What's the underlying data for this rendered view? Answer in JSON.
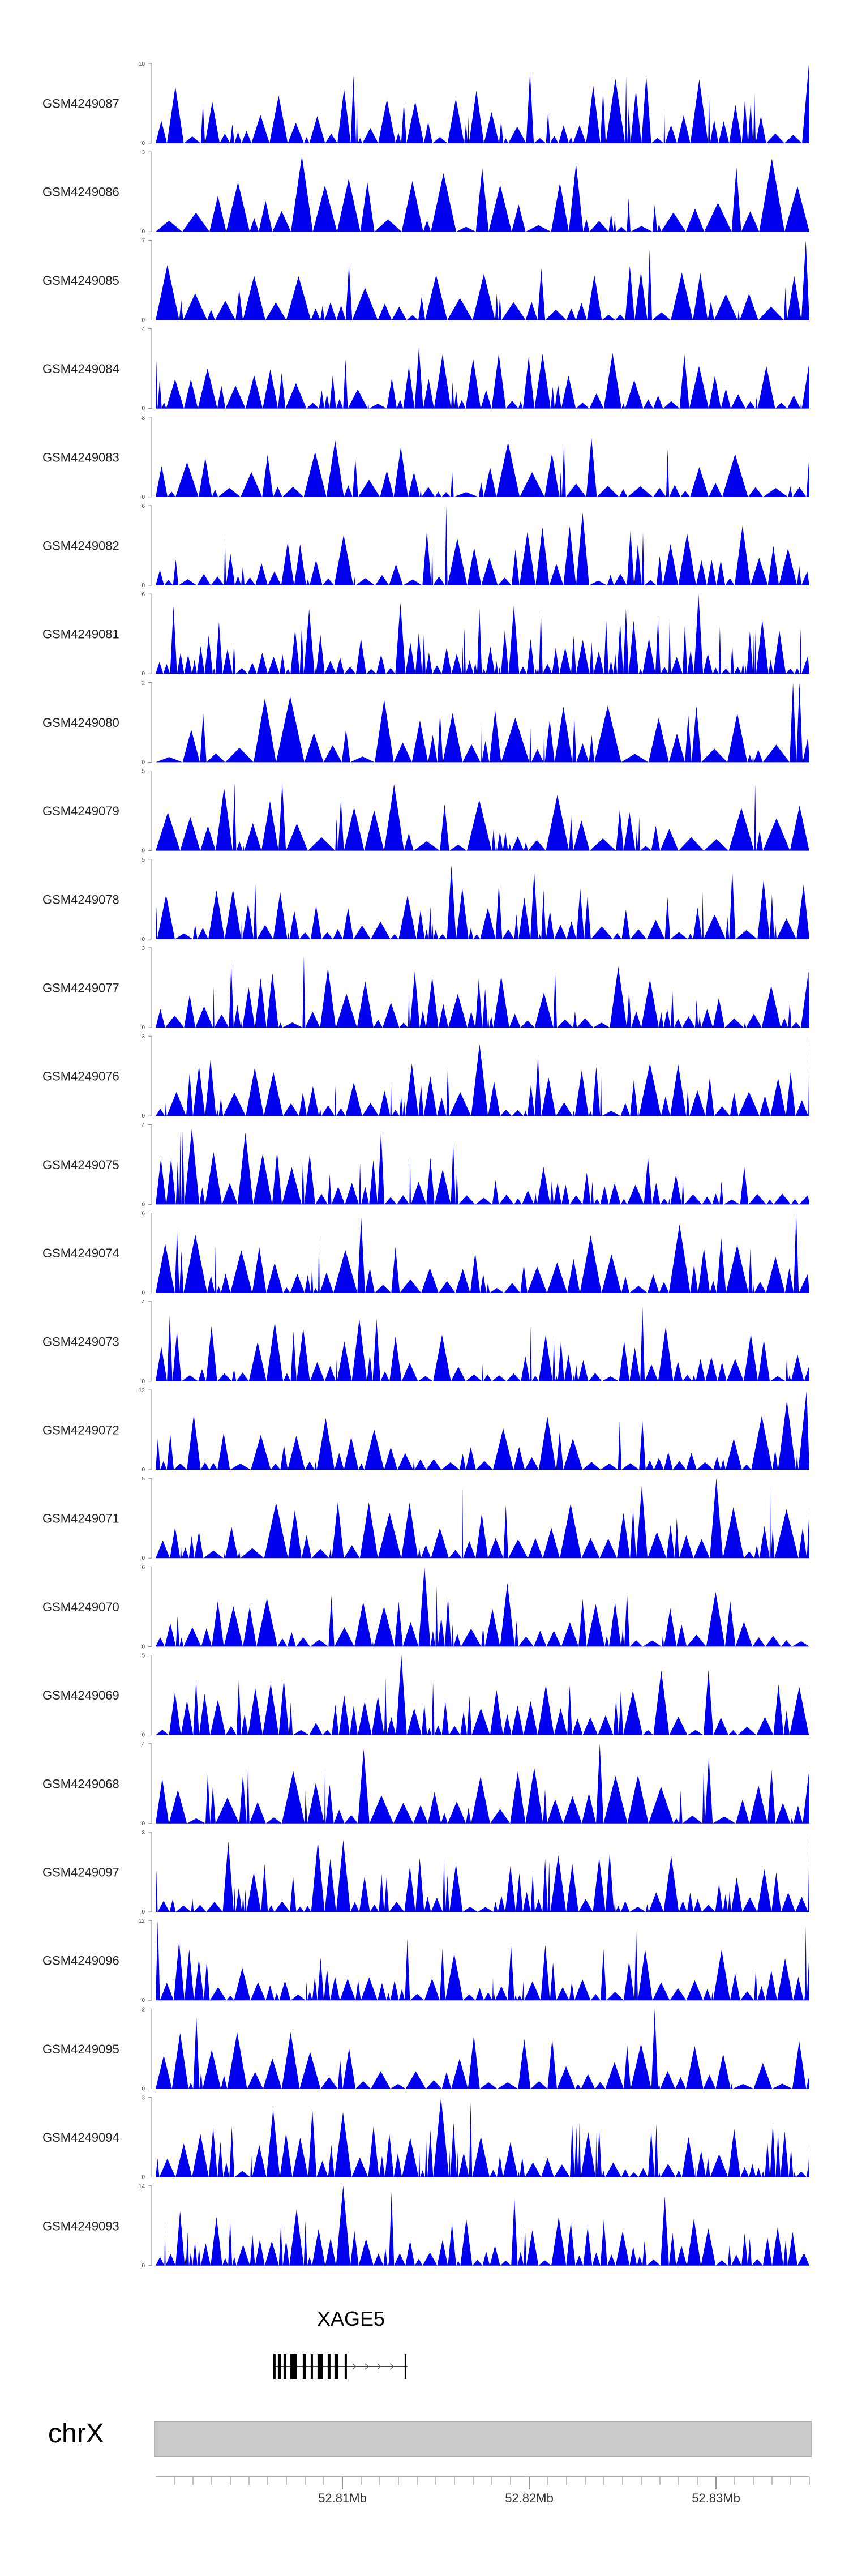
{
  "chart_data": {
    "type": "area",
    "colors": {
      "signal": "#0000EE",
      "ideogram": "#C9C9C9",
      "gene": "#000000"
    },
    "tracks": [
      {
        "label": "GSM4249087",
        "ymax": 10,
        "seed": 11,
        "density": 0.55,
        "peaks": [
          [
            0.3,
            0.85
          ],
          [
            1.0,
            1.0
          ],
          [
            0.0,
            0.55
          ]
        ]
      },
      {
        "label": "GSM4249086",
        "ymax": 3,
        "seed": 23,
        "density": 0.28,
        "peaks": [
          [
            0.25,
            1.0
          ],
          [
            0.5,
            0.8
          ]
        ]
      },
      {
        "label": "GSM4249085",
        "ymax": 7,
        "seed": 37,
        "density": 0.35,
        "peaks": [
          [
            1.0,
            1.0
          ],
          [
            0.84,
            0.6
          ]
        ]
      },
      {
        "label": "GSM4249084",
        "ymax": 4,
        "seed": 41,
        "density": 0.5,
        "peaks": [
          [
            0.09,
            1.0
          ],
          [
            0.2,
            0.8
          ]
        ]
      },
      {
        "label": "GSM4249083",
        "ymax": 3,
        "seed": 53,
        "density": 0.35,
        "peaks": [
          [
            0.59,
            1.0
          ],
          [
            0.34,
            1.0
          ]
        ]
      },
      {
        "label": "GSM4249082",
        "ymax": 6,
        "seed": 67,
        "density": 0.55,
        "peaks": [
          [
            0.45,
            1.0
          ],
          [
            0.9,
            0.75
          ]
        ]
      },
      {
        "label": "GSM4249081",
        "ymax": 6,
        "seed": 71,
        "density": 0.75,
        "peaks": [
          [
            0.83,
            1.0
          ],
          [
            0.03,
            0.85
          ]
        ]
      },
      {
        "label": "GSM4249080",
        "ymax": 2,
        "seed": 83,
        "density": 0.25,
        "peaks": [
          [
            0.98,
            1.0
          ],
          [
            0.17,
            0.7
          ]
        ]
      },
      {
        "label": "GSM4249079",
        "ymax": 5,
        "seed": 97,
        "density": 0.3,
        "peaks": [
          [
            0.45,
            1.0
          ],
          [
            0.61,
            0.7
          ]
        ]
      },
      {
        "label": "GSM4249078",
        "ymax": 5,
        "seed": 101,
        "density": 0.45,
        "peaks": [
          [
            0.27,
            1.0
          ],
          [
            0.84,
            0.6
          ]
        ]
      },
      {
        "label": "GSM4249077",
        "ymax": 3,
        "seed": 113,
        "density": 0.5,
        "peaks": [
          [
            0.04,
            1.0
          ],
          [
            0.87,
            0.85
          ]
        ]
      },
      {
        "label": "GSM4249076",
        "ymax": 3,
        "seed": 127,
        "density": 0.45,
        "peaks": [
          [
            1.0,
            1.0
          ],
          [
            0.49,
            0.9
          ]
        ]
      },
      {
        "label": "GSM4249075",
        "ymax": 4,
        "seed": 131,
        "density": 0.55,
        "peaks": [
          [
            0.06,
            0.95
          ],
          [
            0.14,
            0.9
          ]
        ]
      },
      {
        "label": "GSM4249074",
        "ymax": 6,
        "seed": 139,
        "density": 0.4,
        "peaks": [
          [
            0.98,
            1.0
          ],
          [
            0.12,
            0.7
          ]
        ]
      },
      {
        "label": "GSM4249073",
        "ymax": 4,
        "seed": 149,
        "density": 0.6,
        "peaks": [
          [
            0.24,
            1.0
          ],
          [
            0.47,
            0.8
          ]
        ]
      },
      {
        "label": "GSM4249072",
        "ymax": 12,
        "seed": 151,
        "density": 0.5,
        "peaks": [
          [
            1.0,
            1.0
          ],
          [
            0.14,
            0.4
          ]
        ]
      },
      {
        "label": "GSM4249071",
        "ymax": 5,
        "seed": 163,
        "density": 0.4,
        "peaks": [
          [
            0.86,
            1.0
          ],
          [
            0.28,
            0.7
          ]
        ]
      },
      {
        "label": "GSM4249070",
        "ymax": 6,
        "seed": 173,
        "density": 0.5,
        "peaks": [
          [
            0.41,
            1.0
          ],
          [
            0.49,
            0.8
          ]
        ]
      },
      {
        "label": "GSM4249069",
        "ymax": 5,
        "seed": 181,
        "density": 0.55,
        "peaks": [
          [
            0.38,
            1.0
          ],
          [
            0.2,
            0.7
          ]
        ]
      },
      {
        "label": "GSM4249068",
        "ymax": 4,
        "seed": 191,
        "density": 0.35,
        "peaks": [
          [
            0.68,
            1.0
          ],
          [
            0.47,
            1.0
          ]
        ]
      },
      {
        "label": "GSM4249097",
        "ymax": 3,
        "seed": 193,
        "density": 0.65,
        "peaks": [
          [
            0.16,
            0.95
          ],
          [
            0.29,
            0.9
          ],
          [
            1.0,
            1.0
          ]
        ]
      },
      {
        "label": "GSM4249096",
        "ymax": 12,
        "seed": 197,
        "density": 0.6,
        "peaks": [
          [
            0.0,
            1.0
          ],
          [
            1.0,
            0.6
          ]
        ]
      },
      {
        "label": "GSM4249095",
        "ymax": 2,
        "seed": 199,
        "density": 0.5,
        "peaks": [
          [
            0.76,
            1.0
          ],
          [
            0.71,
            0.7
          ]
        ]
      },
      {
        "label": "GSM4249094",
        "ymax": 3,
        "seed": 211,
        "density": 0.6,
        "peaks": [
          [
            0.44,
            1.0
          ],
          [
            0.18,
            0.85
          ]
        ]
      },
      {
        "label": "GSM4249093",
        "ymax": 14,
        "seed": 223,
        "density": 0.7,
        "peaks": [
          [
            0.29,
            1.0
          ],
          [
            1.0,
            0.4
          ]
        ]
      }
    ],
    "gene": {
      "name": "XAGE5",
      "start_frac": 0.18,
      "end_frac": 0.385
    },
    "chromosome": "chrX",
    "axis": {
      "range_mb": [
        52.8,
        52.835
      ],
      "ticks": [
        52.81,
        52.82,
        52.83
      ],
      "tick_labels": [
        "52.81Mb",
        "52.82Mb",
        "52.83Mb"
      ]
    }
  }
}
